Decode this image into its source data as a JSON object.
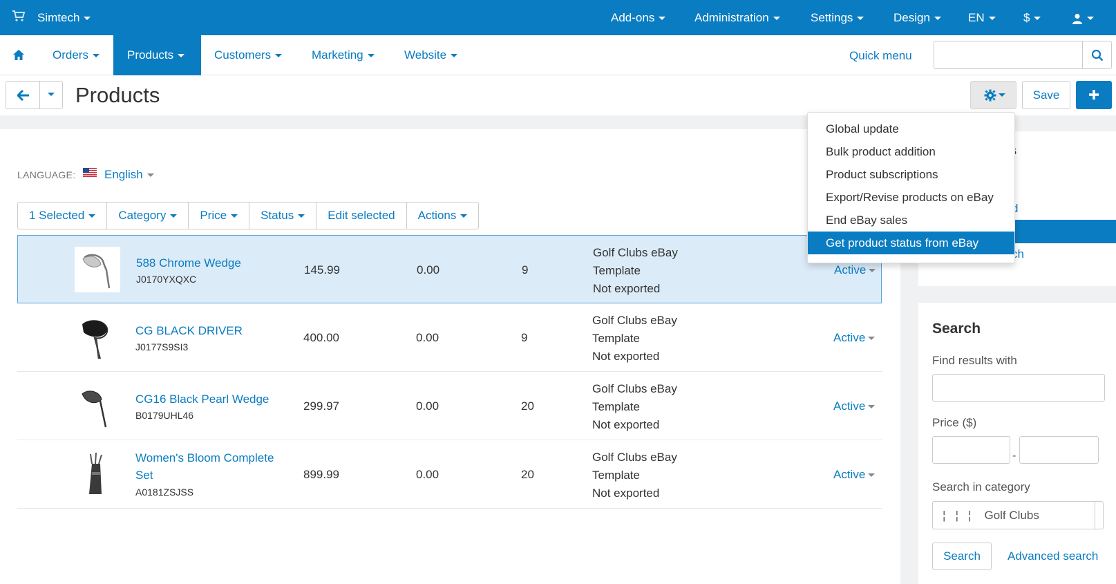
{
  "topbar": {
    "brand": "Simtech",
    "items": [
      "Add-ons",
      "Administration",
      "Settings",
      "Design",
      "EN",
      "$"
    ]
  },
  "mainnav": {
    "items": [
      "Orders",
      "Products",
      "Customers",
      "Marketing",
      "Website"
    ],
    "active": "Products",
    "quick_menu": "Quick menu",
    "search_value": ""
  },
  "page": {
    "title": "Products",
    "save_label": "Save"
  },
  "language": {
    "label": "LANGUAGE:",
    "value": "English"
  },
  "toolbar": [
    "1 Selected",
    "Category",
    "Price",
    "Status",
    "Edit selected",
    "Actions"
  ],
  "products": [
    {
      "name": "588 Chrome Wedge",
      "code": "J0170YXQXC",
      "price": "145.99",
      "list_price": "0.00",
      "quantity": "9",
      "ebay_template": "Golf Clubs eBay",
      "ebay_template_2": "Template",
      "ebay_status": "Not exported",
      "status": "Active",
      "selected": true
    },
    {
      "name": "CG BLACK DRIVER",
      "code": "J0177S9SI3",
      "price": "400.00",
      "list_price": "0.00",
      "quantity": "9",
      "ebay_template": "Golf Clubs eBay",
      "ebay_template_2": "Template",
      "ebay_status": "Not exported",
      "status": "Active",
      "selected": false
    },
    {
      "name": "CG16 Black Pearl Wedge",
      "code": "B0179UHL46",
      "price": "299.97",
      "list_price": "0.00",
      "quantity": "20",
      "ebay_template": "Golf Clubs eBay",
      "ebay_template_2": "Template",
      "ebay_status": "Not exported",
      "status": "Active",
      "selected": false
    },
    {
      "name": "Women's Bloom Complete Set",
      "code": "A0181ZSJSS",
      "price": "899.99",
      "list_price": "0.00",
      "quantity": "20",
      "ebay_template": "Golf Clubs eBay",
      "ebay_template_2": "Template",
      "ebay_status": "Not exported",
      "status": "Active",
      "selected": false
    }
  ],
  "gear_menu": {
    "items": [
      "Global update",
      "Bulk product addition",
      "Product subscriptions",
      "Export/Revise products on eBay",
      "End eBay sales",
      "Get product status from eBay"
    ],
    "highlighted": "Get product status from eBay"
  },
  "sidebar_panel_partial": {
    "title_fragment": "es",
    "link1_fragment": "d",
    "link2_fragment": "ch"
  },
  "search_panel": {
    "title": "Search",
    "find_label": "Find results with",
    "find_value": "",
    "price_label": "Price ($)",
    "price_from": "",
    "price_to": "",
    "price_separator": "-",
    "category_label": "Search in category",
    "category_value": "¦   ¦   ¦    Golf Clubs",
    "search_button": "Search",
    "advanced_link": "Advanced search"
  },
  "colors": {
    "accent": "#0a7cc1",
    "selected_row": "#dbebf8",
    "selected_border": "#5aa3d8",
    "sidebar_bg": "#f0f1f2"
  }
}
